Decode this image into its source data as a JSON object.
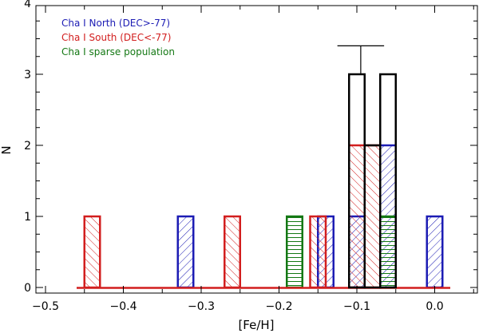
{
  "chart_data": {
    "type": "histogram",
    "xlabel": "[Fe/H]",
    "ylabel": "N",
    "xlim": [
      -0.5,
      0.05
    ],
    "ylim": [
      0,
      4
    ],
    "xticks": [
      -0.5,
      -0.4,
      -0.3,
      -0.2,
      -0.1,
      0.0
    ],
    "xtick_labels": [
      "−0.5",
      "−0.4",
      "−0.3",
      "−0.2",
      "−0.1",
      "0.0"
    ],
    "yticks": [
      0,
      1,
      2,
      3,
      4
    ],
    "ytick_labels": [
      "0",
      "1",
      "2",
      "3",
      "4"
    ],
    "bin_width": 0.02,
    "bin_edges_start": -0.46,
    "bin_edges_end": 0.02,
    "legend": [
      {
        "label": "Cha I North (DEC>-77)",
        "color": "#1c1cb4"
      },
      {
        "label": "Cha I South (DEC<-77)",
        "color": "#d21e1e"
      },
      {
        "label": "Cha I sparse population",
        "color": "#147814"
      }
    ],
    "total": {
      "name": "All",
      "color": "#000000",
      "bins": [
        {
          "x0": -0.11,
          "x1": -0.09,
          "count": 3
        },
        {
          "x0": -0.09,
          "x1": -0.07,
          "count": 2
        },
        {
          "x0": -0.07,
          "x1": -0.05,
          "count": 3
        }
      ],
      "error_bar": {
        "x": -0.095,
        "y_center": 3,
        "y_upper": 3.4,
        "cap_x0": -0.125,
        "cap_x1": -0.065
      }
    },
    "series": [
      {
        "name": "Cha I North (DEC>-77)",
        "color": "#1c1cb4",
        "hatch": "forward",
        "bins": [
          {
            "x0": -0.33,
            "x1": -0.31,
            "count": 1
          },
          {
            "x0": -0.15,
            "x1": -0.13,
            "count": 1
          },
          {
            "x0": -0.11,
            "x1": -0.09,
            "count": 1
          },
          {
            "x0": -0.07,
            "x1": -0.05,
            "count": 2
          },
          {
            "x0": -0.01,
            "x1": 0.01,
            "count": 1
          }
        ]
      },
      {
        "name": "Cha I South (DEC<-77)",
        "color": "#d21e1e",
        "hatch": "back",
        "bins": [
          {
            "x0": -0.45,
            "x1": -0.43,
            "count": 1
          },
          {
            "x0": -0.27,
            "x1": -0.25,
            "count": 1
          },
          {
            "x0": -0.16,
            "x1": -0.14,
            "count": 1
          },
          {
            "x0": -0.11,
            "x1": -0.09,
            "count": 2
          },
          {
            "x0": -0.09,
            "x1": -0.07,
            "count": 2
          }
        ]
      },
      {
        "name": "Cha I sparse population",
        "color": "#147814",
        "hatch": "horizontal",
        "bins": [
          {
            "x0": -0.19,
            "x1": -0.17,
            "count": 1
          },
          {
            "x0": -0.07,
            "x1": -0.05,
            "count": 1
          }
        ]
      }
    ]
  }
}
